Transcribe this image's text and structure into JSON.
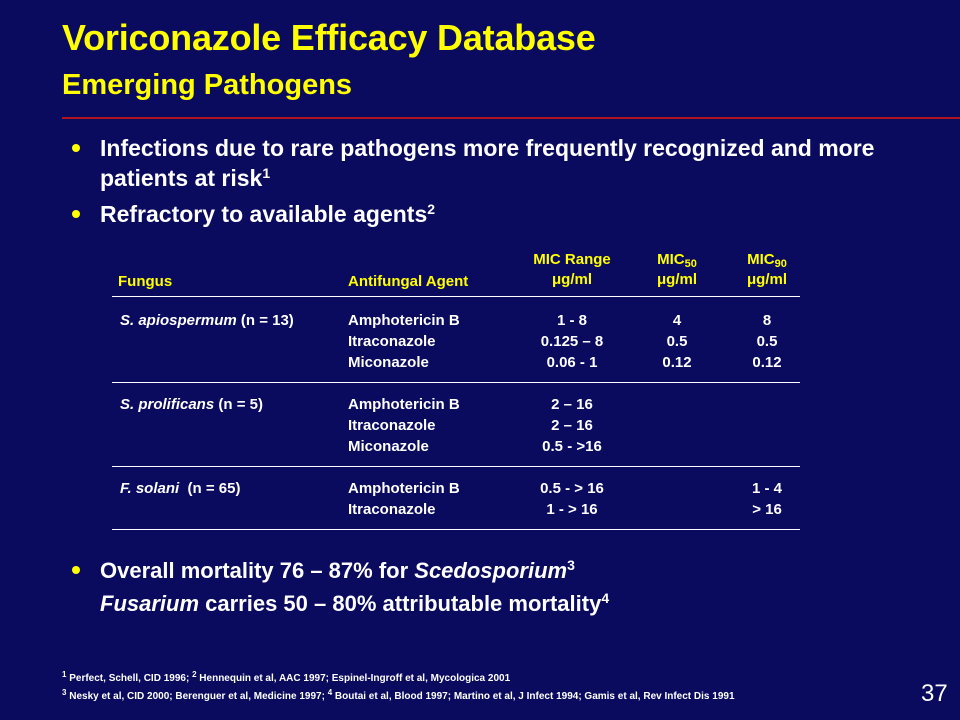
{
  "slide": {
    "title": "Voriconazole Efficacy Database",
    "subtitle": "Emerging Pathogens",
    "page_number": "37"
  },
  "bullets": [
    {
      "text": "Infections due to rare pathogens more frequently recognized and more patients at risk",
      "ref": "1"
    },
    {
      "text": "Refractory to available agents",
      "ref": "2"
    }
  ],
  "table": {
    "headers": {
      "fungus": "Fungus",
      "agent": "Antifungal Agent",
      "range_line1": "MIC Range",
      "range_line2": "μg/ml",
      "mic50_label": "MIC",
      "mic50_sub": "50",
      "mic50_unit": "μg/ml",
      "mic90_label": "MIC",
      "mic90_sub": "90",
      "mic90_unit": "μg/ml"
    },
    "groups": [
      {
        "organism": "S. apiospermum",
        "count": "(n = 13)",
        "rows": [
          {
            "agent": "Amphotericin B",
            "range": "1 - 8",
            "mic50": "4",
            "mic90": "8"
          },
          {
            "agent": "Itraconazole",
            "range": "0.125 – 8",
            "mic50": "0.5",
            "mic90": "0.5"
          },
          {
            "agent": "Miconazole",
            "range": "0.06 - 1",
            "mic50": "0.12",
            "mic90": "0.12"
          }
        ]
      },
      {
        "organism": "S. prolificans",
        "count": "(n = 5)",
        "rows": [
          {
            "agent": "Amphotericin B",
            "range": "2 – 16",
            "mic50": "",
            "mic90": ""
          },
          {
            "agent": "Itraconazole",
            "range": "2 – 16",
            "mic50": "",
            "mic90": ""
          },
          {
            "agent": "Miconazole",
            "range": "0.5 - >16",
            "mic50": "",
            "mic90": ""
          }
        ]
      },
      {
        "organism": "F. solani",
        "count": "(n = 65)",
        "rows": [
          {
            "agent": "Amphotericin B",
            "range": "0.5 - > 16",
            "mic50": "",
            "mic90": "1 - 4"
          },
          {
            "agent": "Itraconazole",
            "range": "1 - > 16",
            "mic50": "",
            "mic90": "> 16"
          }
        ]
      }
    ]
  },
  "bullets_bottom": {
    "b1_prefix": "Overall mortality 76 – 87% for ",
    "b1_italic": "Scedosporium",
    "b1_ref": "3",
    "b2_italic": "Fusarium",
    "b2_suffix": " carries 50 – 80% attributable mortality",
    "b2_ref": "4"
  },
  "references": {
    "r1_sup1": "1",
    "r1_a": " Perfect, Schell, CID 1996; ",
    "r1_sup2": "2",
    "r1_b": " Hennequin et al, AAC 1997; Espinel-Ingroff et al, Mycologica 2001",
    "r2_sup1": "3",
    "r2_a": " Nesky et al, CID 2000; Berenguer et al, Medicine 1997; ",
    "r2_sup2": "4",
    "r2_b": " Boutai et al, Blood 1997; Martino et al, J Infect 1994; Gamis et al, Rev Infect Dis 1991"
  },
  "colors": {
    "background": "#0a0a5e",
    "title": "#ffff00",
    "rule": "#b0141e",
    "bullet": "#ffff00",
    "text": "#ffffff"
  }
}
